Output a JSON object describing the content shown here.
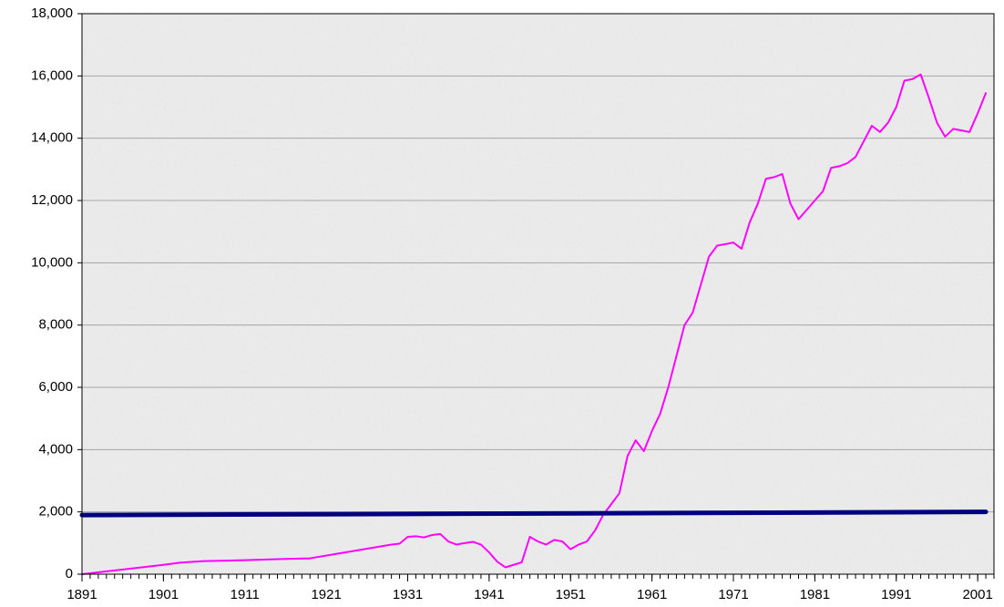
{
  "chart_data": {
    "type": "line",
    "xlim": [
      1891,
      2003
    ],
    "xticks": [
      1891,
      1901,
      1911,
      1921,
      1931,
      1941,
      1951,
      1961,
      1971,
      1981,
      1991,
      2001
    ],
    "ylim": [
      0,
      18000
    ],
    "yticks": [
      0,
      {
        "value": 2000,
        "label": "2,000"
      },
      {
        "value": 4000,
        "label": "4,000"
      },
      {
        "value": 6000,
        "label": "6,000"
      },
      {
        "value": 8000,
        "label": "8,000"
      },
      {
        "value": 10000,
        "label": "10,000"
      },
      {
        "value": 12000,
        "label": "12,000"
      },
      {
        "value": 14000,
        "label": "14,000"
      },
      {
        "value": 16000,
        "label": "16,000"
      },
      {
        "value": 18000,
        "label": "18,000"
      }
    ],
    "grid": true,
    "series": [
      {
        "color": "#ff00ff",
        "x": [
          1891,
          1901,
          1903,
          1906,
          1911,
          1916,
          1919,
          1929,
          1930,
          1931,
          1932,
          1933,
          1934,
          1935,
          1936,
          1937,
          1938,
          1939,
          1940,
          1941,
          1942,
          1943,
          1944,
          1945,
          1946,
          1947,
          1948,
          1949,
          1950,
          1951,
          1952,
          1953,
          1954,
          1955,
          1956,
          1957,
          1958,
          1959,
          1960,
          1961,
          1962,
          1963,
          1964,
          1965,
          1966,
          1967,
          1968,
          1969,
          1970,
          1971,
          1972,
          1973,
          1974,
          1975,
          1976,
          1977,
          1978,
          1979,
          1980,
          1981,
          1982,
          1983,
          1984,
          1985,
          1986,
          1987,
          1988,
          1989,
          1990,
          1991,
          1992,
          1993,
          1994,
          1995,
          1996,
          1997,
          1998,
          1999,
          2000,
          2001,
          2002
        ],
        "values": [
          0,
          300,
          370,
          420,
          450,
          490,
          510,
          950,
          980,
          1200,
          1220,
          1180,
          1260,
          1290,
          1050,
          950,
          1000,
          1040,
          950,
          700,
          400,
          220,
          300,
          380,
          1200,
          1050,
          950,
          1100,
          1050,
          800,
          950,
          1050,
          1400,
          1900,
          2250,
          2600,
          3800,
          4300,
          3950,
          4600,
          5150,
          6000,
          7000,
          8000,
          8400,
          9300,
          10200,
          10550,
          10600,
          10650,
          10450,
          11300,
          11900,
          12700,
          12750,
          12850,
          11900,
          11400,
          11700,
          12000,
          12300,
          13050,
          13100,
          13200,
          13400,
          13900,
          14400,
          14200,
          14500,
          15000,
          15850,
          15900,
          16050,
          15300,
          14500,
          14050,
          14300,
          14250,
          14200,
          14800,
          15450
        ]
      },
      {
        "color": "#000080",
        "x": [
          1891,
          2002
        ],
        "values": [
          1900,
          2000
        ]
      }
    ]
  }
}
